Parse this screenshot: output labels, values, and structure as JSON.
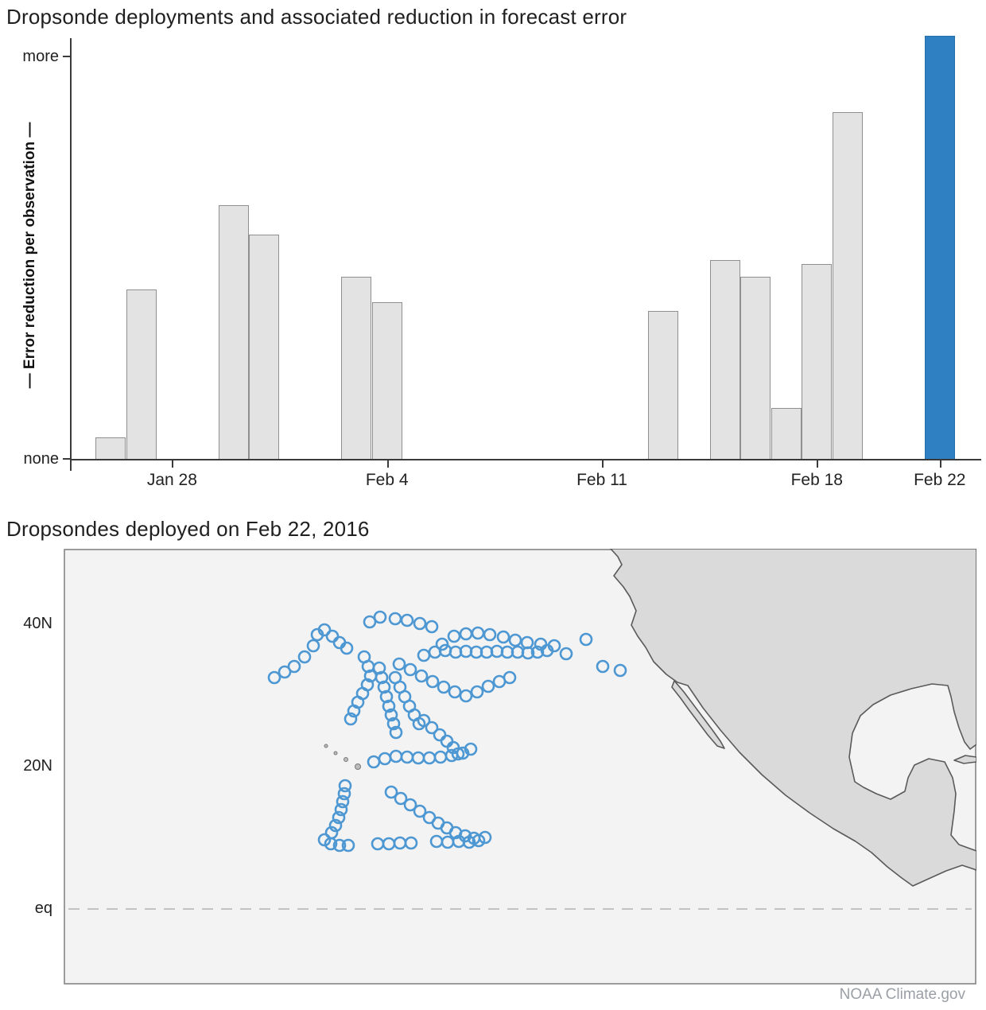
{
  "page": {
    "footer": "NOAA Climate.gov"
  },
  "chart_data": [
    {
      "type": "bar",
      "title": "Dropsonde deployments and associated reduction in forecast error",
      "ylabel": "— Error reduction per observation —",
      "y_axis_labels": {
        "top": "more",
        "bottom": "none"
      },
      "y_scale_note": "qualitative axis from none to more; values normalized 0-1 of tallest bar",
      "x_domain": [
        -1.3,
        28.3
      ],
      "x_ticks": [
        {
          "label": "Jan 28",
          "day": 2
        },
        {
          "label": "Feb 4",
          "day": 9
        },
        {
          "label": "Feb 11",
          "day": 16
        },
        {
          "label": "Feb 18",
          "day": 23
        },
        {
          "label": "Feb 22",
          "day": 27
        }
      ],
      "bars": [
        {
          "date": "Jan 26",
          "day": 0,
          "value": 0.05,
          "highlight": false
        },
        {
          "date": "Jan 27",
          "day": 1,
          "value": 0.4,
          "highlight": false
        },
        {
          "date": "Jan 30",
          "day": 4,
          "value": 0.6,
          "highlight": false
        },
        {
          "date": "Jan 31",
          "day": 5,
          "value": 0.53,
          "highlight": false
        },
        {
          "date": "Feb 3",
          "day": 8,
          "value": 0.43,
          "highlight": false
        },
        {
          "date": "Feb 4",
          "day": 9,
          "value": 0.37,
          "highlight": false
        },
        {
          "date": "Feb 13",
          "day": 18,
          "value": 0.35,
          "highlight": false
        },
        {
          "date": "Feb 15",
          "day": 20,
          "value": 0.47,
          "highlight": false
        },
        {
          "date": "Feb 16",
          "day": 21,
          "value": 0.43,
          "highlight": false
        },
        {
          "date": "Feb 17",
          "day": 22,
          "value": 0.12,
          "highlight": false
        },
        {
          "date": "Feb 18",
          "day": 23,
          "value": 0.46,
          "highlight": false
        },
        {
          "date": "Feb 19",
          "day": 24,
          "value": 0.82,
          "highlight": false
        },
        {
          "date": "Feb 22",
          "day": 27,
          "value": 1.0,
          "highlight": true
        }
      ],
      "colors": {
        "bar": "#e3e3e3",
        "bar_border": "#8f8f8f",
        "highlight": "#2e80c2"
      }
    },
    {
      "type": "scatter",
      "title": "Dropsondes deployed on Feb 22, 2016",
      "region": "North Pacific with North America coastline",
      "y_axis_labels": [
        {
          "label": "40N",
          "y": 95
        },
        {
          "label": "20N",
          "y": 274
        },
        {
          "label": "eq",
          "y": 453
        }
      ],
      "equator_y": 453,
      "marker": {
        "shape": "open-circle",
        "radius": 7,
        "color": "#4d97d3"
      },
      "points": [
        [
          265,
          162
        ],
        [
          278,
          155
        ],
        [
          290,
          148
        ],
        [
          303,
          136
        ],
        [
          314,
          122
        ],
        [
          319,
          108
        ],
        [
          328,
          102
        ],
        [
          338,
          110
        ],
        [
          347,
          118
        ],
        [
          356,
          125
        ],
        [
          385,
          92
        ],
        [
          398,
          86
        ],
        [
          417,
          88
        ],
        [
          432,
          90
        ],
        [
          448,
          94
        ],
        [
          463,
          98
        ],
        [
          453,
          134
        ],
        [
          467,
          130
        ],
        [
          480,
          128
        ],
        [
          493,
          130
        ],
        [
          506,
          129
        ],
        [
          519,
          130
        ],
        [
          532,
          130
        ],
        [
          545,
          129
        ],
        [
          558,
          130
        ],
        [
          571,
          130
        ],
        [
          584,
          131
        ],
        [
          596,
          130
        ],
        [
          608,
          128
        ],
        [
          476,
          120
        ],
        [
          491,
          110
        ],
        [
          506,
          107
        ],
        [
          521,
          106
        ],
        [
          536,
          108
        ],
        [
          553,
          111
        ],
        [
          568,
          115
        ],
        [
          583,
          118
        ],
        [
          600,
          120
        ],
        [
          617,
          122
        ],
        [
          632,
          132
        ],
        [
          657,
          114
        ],
        [
          678,
          148
        ],
        [
          700,
          153
        ],
        [
          422,
          145
        ],
        [
          436,
          152
        ],
        [
          450,
          160
        ],
        [
          464,
          167
        ],
        [
          478,
          174
        ],
        [
          492,
          180
        ],
        [
          506,
          185
        ],
        [
          520,
          180
        ],
        [
          534,
          173
        ],
        [
          548,
          167
        ],
        [
          561,
          162
        ],
        [
          378,
          136
        ],
        [
          383,
          148
        ],
        [
          386,
          160
        ],
        [
          382,
          171
        ],
        [
          376,
          182
        ],
        [
          370,
          193
        ],
        [
          365,
          204
        ],
        [
          361,
          214
        ],
        [
          397,
          150
        ],
        [
          400,
          162
        ],
        [
          403,
          174
        ],
        [
          406,
          186
        ],
        [
          409,
          198
        ],
        [
          412,
          209
        ],
        [
          415,
          220
        ],
        [
          418,
          231
        ],
        [
          417,
          162
        ],
        [
          423,
          174
        ],
        [
          429,
          186
        ],
        [
          435,
          198
        ],
        [
          441,
          209
        ],
        [
          447,
          220
        ],
        [
          453,
          216
        ],
        [
          463,
          225
        ],
        [
          473,
          234
        ],
        [
          482,
          242
        ],
        [
          490,
          250
        ],
        [
          496,
          258
        ],
        [
          390,
          268
        ],
        [
          404,
          264
        ],
        [
          418,
          261
        ],
        [
          432,
          262
        ],
        [
          446,
          263
        ],
        [
          460,
          263
        ],
        [
          474,
          262
        ],
        [
          488,
          260
        ],
        [
          502,
          257
        ],
        [
          512,
          252
        ],
        [
          354,
          298
        ],
        [
          353,
          308
        ],
        [
          351,
          318
        ],
        [
          349,
          328
        ],
        [
          346,
          338
        ],
        [
          342,
          348
        ],
        [
          337,
          357
        ],
        [
          328,
          366
        ],
        [
          336,
          371
        ],
        [
          347,
          373
        ],
        [
          358,
          373
        ],
        [
          395,
          371
        ],
        [
          409,
          371
        ],
        [
          423,
          370
        ],
        [
          437,
          370
        ],
        [
          469,
          368
        ],
        [
          483,
          369
        ],
        [
          497,
          368
        ],
        [
          510,
          369
        ],
        [
          522,
          367
        ],
        [
          530,
          363
        ],
        [
          412,
          306
        ],
        [
          424,
          314
        ],
        [
          436,
          322
        ],
        [
          448,
          330
        ],
        [
          460,
          338
        ],
        [
          471,
          345
        ],
        [
          482,
          351
        ],
        [
          493,
          357
        ],
        [
          505,
          361
        ],
        [
          516,
          364
        ]
      ]
    }
  ]
}
